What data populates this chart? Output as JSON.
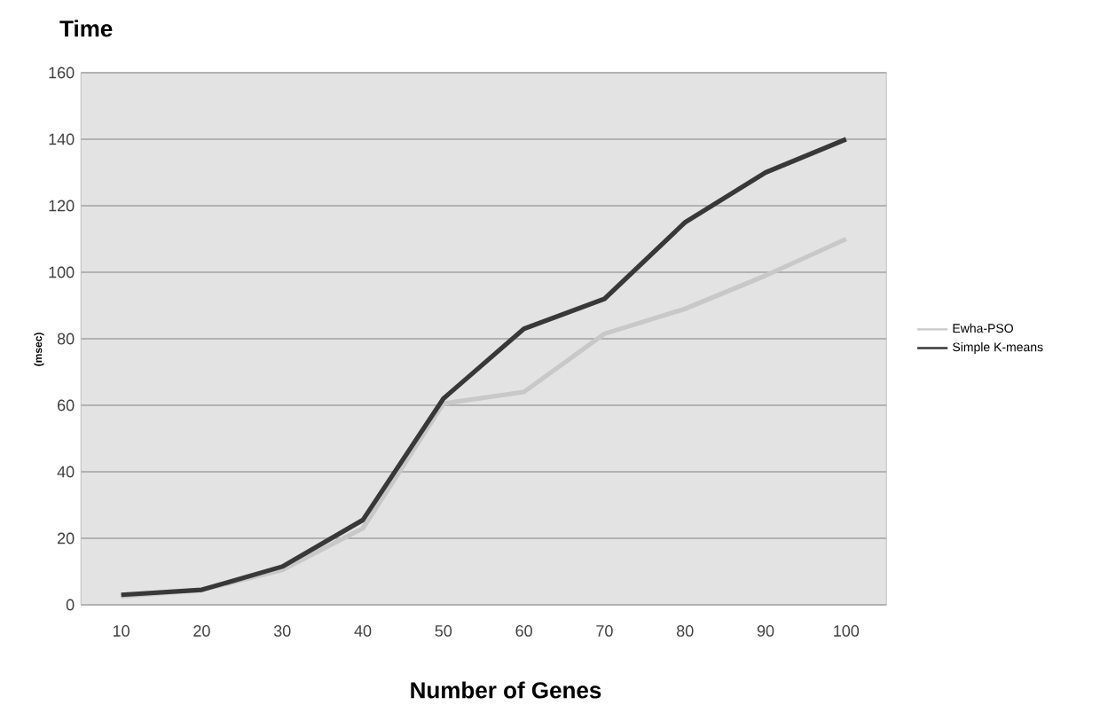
{
  "chart_data": {
    "type": "line",
    "title": "Time",
    "ylabel": "(msec)",
    "xlabel": "Number of Genes",
    "categories": [
      "10",
      "20",
      "30",
      "40",
      "50",
      "60",
      "70",
      "80",
      "90",
      "100"
    ],
    "series": [
      {
        "name": "Ewha-PSO",
        "color": "#c8c8c8",
        "values": [
          2.5,
          4.5,
          10.5,
          23,
          60.5,
          64,
          81.5,
          89,
          99,
          110
        ]
      },
      {
        "name": "Simple K-means",
        "color": "#383838",
        "values": [
          3,
          4.5,
          11.5,
          25.5,
          62,
          83,
          92,
          115,
          130,
          140
        ]
      }
    ],
    "ylim": [
      0,
      160
    ],
    "yticks": [
      0,
      20,
      40,
      60,
      80,
      100,
      120,
      140,
      160
    ],
    "grid": "y",
    "legend": "right",
    "marker": "none",
    "line_style": "solid"
  }
}
